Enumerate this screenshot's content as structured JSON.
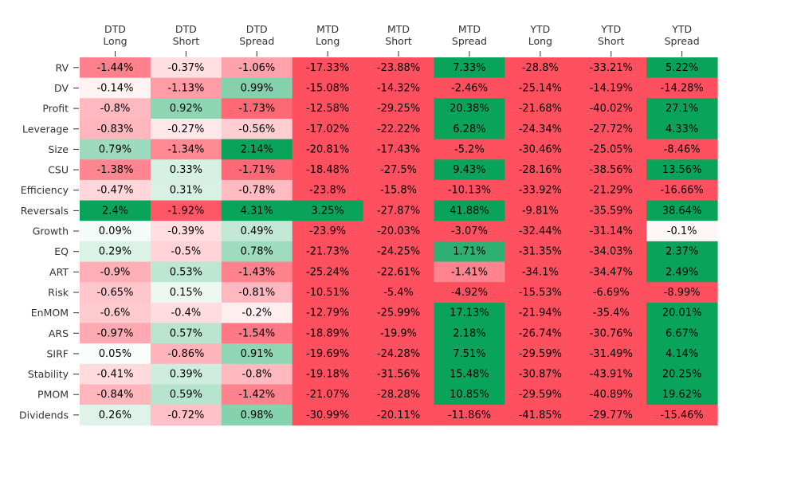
{
  "chart_data": {
    "type": "heatmap",
    "columns": [
      [
        "DTD",
        "Long"
      ],
      [
        "DTD",
        "Short"
      ],
      [
        "DTD",
        "Spread"
      ],
      [
        "MTD",
        "Long"
      ],
      [
        "MTD",
        "Short"
      ],
      [
        "MTD",
        "Spread"
      ],
      [
        "YTD",
        "Long"
      ],
      [
        "YTD",
        "Short"
      ],
      [
        "YTD",
        "Spread"
      ]
    ],
    "rows": [
      "RV",
      "DV",
      "Profit",
      "Leverage",
      "Size",
      "CSU",
      "Efficiency",
      "Reversals",
      "Growth",
      "EQ",
      "ART",
      "Risk",
      "EnMOM",
      "ARS",
      "SIRF",
      "Stability",
      "PMOM",
      "Dividends"
    ],
    "values": [
      [
        -1.44,
        -0.37,
        -1.06,
        -17.33,
        -23.88,
        7.33,
        -28.8,
        -33.21,
        5.22
      ],
      [
        -0.14,
        -1.13,
        0.99,
        -15.08,
        -14.32,
        -2.46,
        -25.14,
        -14.19,
        -14.28
      ],
      [
        -0.8,
        0.92,
        -1.73,
        -12.58,
        -29.25,
        20.38,
        -21.68,
        -40.02,
        27.1
      ],
      [
        -0.83,
        -0.27,
        -0.56,
        -17.02,
        -22.22,
        6.28,
        -24.34,
        -27.72,
        4.33
      ],
      [
        0.79,
        -1.34,
        2.14,
        -20.81,
        -17.43,
        -5.2,
        -30.46,
        -25.05,
        -8.46
      ],
      [
        -1.38,
        0.33,
        -1.71,
        -18.48,
        -27.5,
        9.43,
        -28.16,
        -38.56,
        13.56
      ],
      [
        -0.47,
        0.31,
        -0.78,
        -23.8,
        -15.8,
        -10.13,
        -33.92,
        -21.29,
        -16.66
      ],
      [
        2.4,
        -1.92,
        4.31,
        3.25,
        -27.87,
        41.88,
        -9.81,
        -35.59,
        38.64
      ],
      [
        0.09,
        -0.39,
        0.49,
        -23.9,
        -20.03,
        -3.07,
        -32.44,
        -31.14,
        -0.1
      ],
      [
        0.29,
        -0.5,
        0.78,
        -21.73,
        -24.25,
        1.71,
        -31.35,
        -34.03,
        2.37
      ],
      [
        -0.9,
        0.53,
        -1.43,
        -25.24,
        -22.61,
        -1.41,
        -34.1,
        -34.47,
        2.49
      ],
      [
        -0.65,
        0.15,
        -0.81,
        -10.51,
        -5.4,
        -4.92,
        -15.53,
        -6.69,
        -8.99
      ],
      [
        -0.6,
        -0.4,
        -0.2,
        -12.79,
        -25.99,
        17.13,
        -21.94,
        -35.4,
        20.01
      ],
      [
        -0.97,
        0.57,
        -1.54,
        -18.89,
        -19.9,
        2.18,
        -26.74,
        -30.76,
        6.67
      ],
      [
        0.05,
        -0.86,
        0.91,
        -19.69,
        -24.28,
        7.51,
        -29.59,
        -31.49,
        4.14
      ],
      [
        -0.41,
        0.39,
        -0.8,
        -19.18,
        -31.56,
        15.48,
        -30.87,
        -43.91,
        20.25
      ],
      [
        -0.84,
        0.59,
        -1.42,
        -21.07,
        -28.28,
        10.85,
        -29.59,
        -40.89,
        19.62
      ],
      [
        0.26,
        -0.72,
        0.98,
        -30.99,
        -20.11,
        -11.86,
        -41.85,
        -29.77,
        -15.46
      ]
    ],
    "value_suffix": "%",
    "color_scale": {
      "min": -2,
      "max": 2,
      "negative": "#ff5060",
      "neutral": "#ffffff",
      "positive": "#0aa35a"
    },
    "grid": false,
    "legend": "none"
  }
}
